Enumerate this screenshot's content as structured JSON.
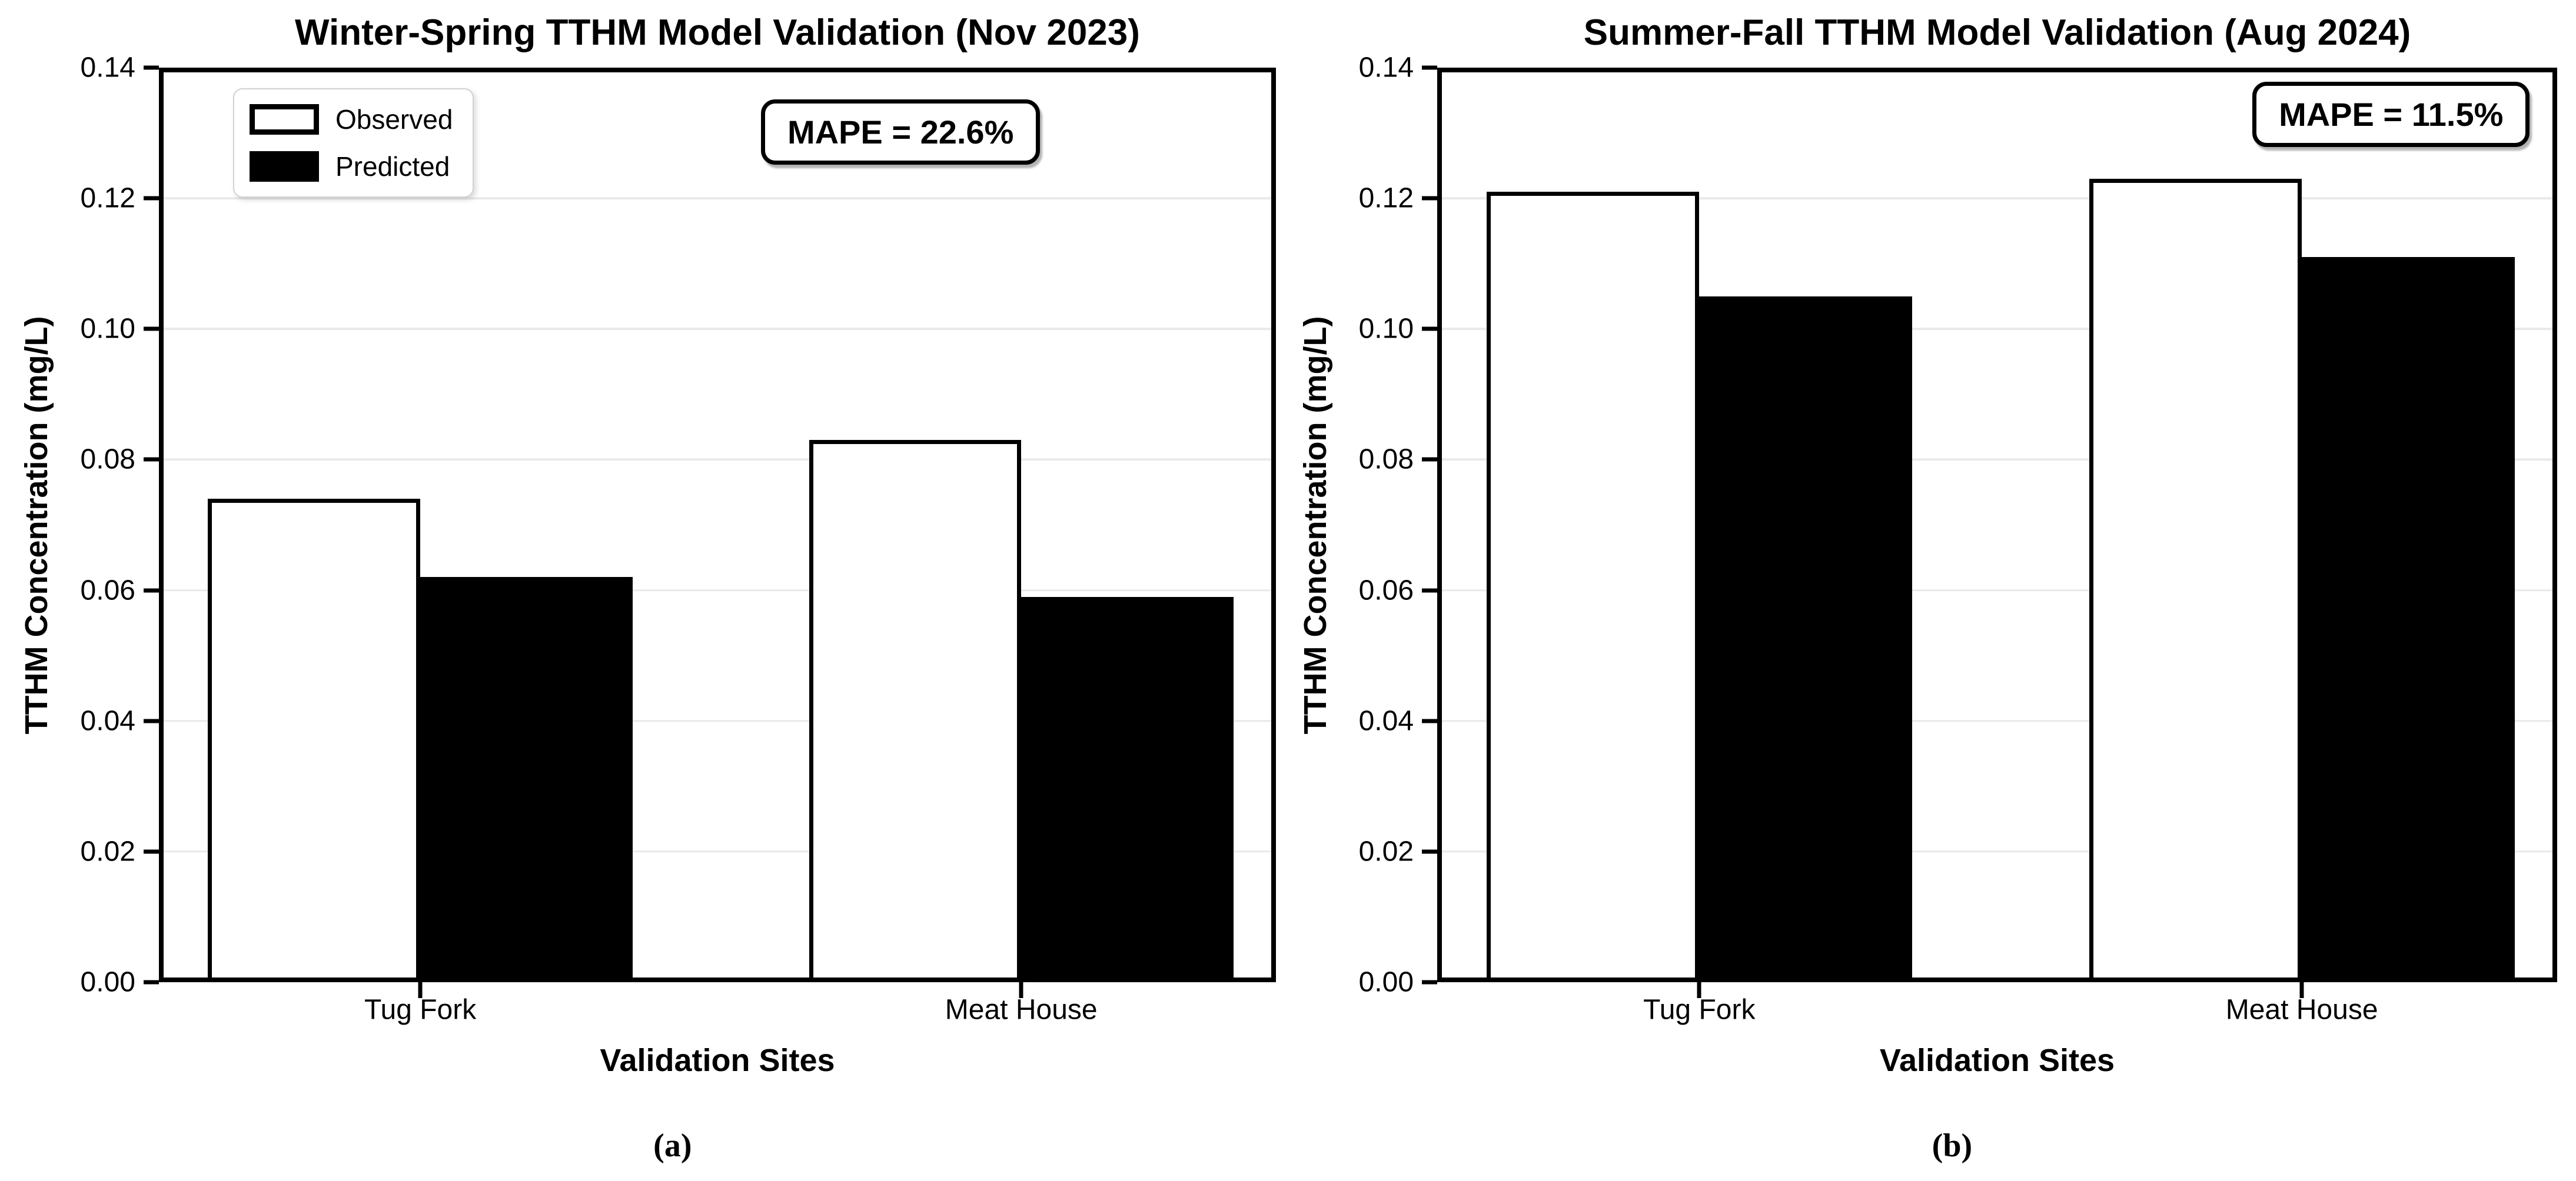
{
  "figure": {
    "background": "#ffffff",
    "grid_color": "#e9e9e9",
    "spine_color": "#000000",
    "observed_fill": "#ffffff",
    "predicted_fill": "#000000",
    "bar_edge_color": "#000000",
    "legend_border_color": "#d2d2d2",
    "text_color": "#000000"
  },
  "chart_data": [
    {
      "type": "bar",
      "title": "Winter-Spring TTHM Model Validation (Nov 2023)",
      "xlabel": "Validation Sites",
      "ylabel": "TTHM Concentration (mg/L)",
      "panel_label": "(a)",
      "annotation": "MAPE = 22.6%",
      "categories": [
        "Tug Fork",
        "Meat House"
      ],
      "series": [
        {
          "name": "Observed",
          "values": [
            0.074,
            0.083
          ],
          "fill": "#ffffff"
        },
        {
          "name": "Predicted",
          "values": [
            0.062,
            0.059
          ],
          "fill": "#000000"
        }
      ],
      "ylim": [
        0,
        0.14
      ],
      "yticks": [
        0.0,
        0.02,
        0.04,
        0.06,
        0.08,
        0.1,
        0.12,
        0.14
      ],
      "yticklabels": [
        "0.00",
        "0.02",
        "0.04",
        "0.06",
        "0.08",
        "0.10",
        "0.12",
        "0.14"
      ],
      "grid": true,
      "legend_visible": true,
      "legend_position": "upper left",
      "annotation_position": "upper center-right"
    },
    {
      "type": "bar",
      "title": "Summer-Fall TTHM Model Validation (Aug 2024)",
      "xlabel": "Validation Sites",
      "ylabel": "TTHM Concentration (mg/L)",
      "panel_label": "(b)",
      "annotation": "MAPE = 11.5%",
      "categories": [
        "Tug Fork",
        "Meat House"
      ],
      "series": [
        {
          "name": "Observed",
          "values": [
            0.121,
            0.123
          ],
          "fill": "#ffffff"
        },
        {
          "name": "Predicted",
          "values": [
            0.105,
            0.111
          ],
          "fill": "#000000"
        }
      ],
      "ylim": [
        0,
        0.14
      ],
      "yticks": [
        0.0,
        0.02,
        0.04,
        0.06,
        0.08,
        0.1,
        0.12,
        0.14
      ],
      "yticklabels": [
        "0.00",
        "0.02",
        "0.04",
        "0.06",
        "0.08",
        "0.10",
        "0.12",
        "0.14"
      ],
      "grid": true,
      "legend_visible": false,
      "legend_position": null,
      "annotation_position": "upper right"
    }
  ]
}
